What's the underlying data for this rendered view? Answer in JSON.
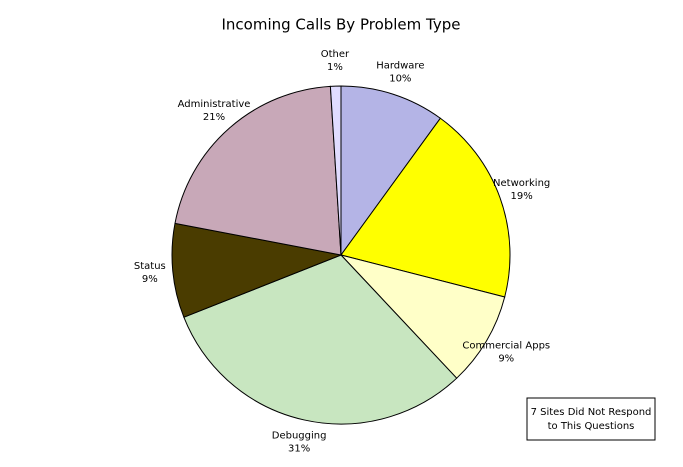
{
  "chart_data": {
    "type": "pie",
    "title": "Incoming Calls By Problem Type",
    "categories": [
      "Hardware",
      "Networking",
      "Commercial Apps",
      "Debugging",
      "Status",
      "Administrative",
      "Other"
    ],
    "values": [
      10,
      19,
      9,
      31,
      9,
      21,
      1
    ],
    "value_labels": [
      "10%",
      "19%",
      "9%",
      "31%",
      "9%",
      "21%",
      "1%"
    ],
    "colors": [
      "#b4b4e6",
      "#ffff00",
      "#ffffc8",
      "#c8e6c0",
      "#4a3c00",
      "#c8a8b8",
      "#e0dcff"
    ],
    "note": [
      "7 Sites Did Not Respond",
      "to This Questions"
    ]
  }
}
